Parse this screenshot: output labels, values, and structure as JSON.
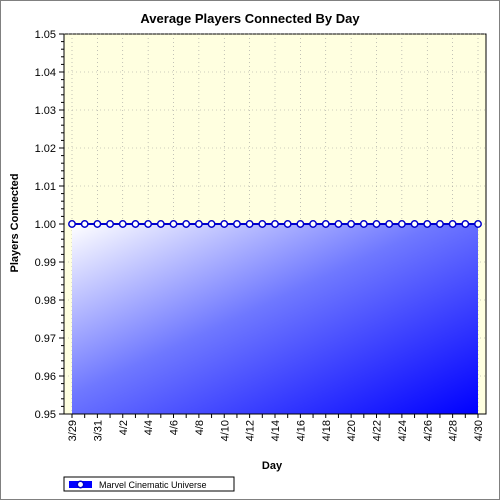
{
  "chart_data": {
    "type": "area",
    "title": "Average Players Connected By Day",
    "xlabel": "Day",
    "ylabel": "Players Connected",
    "ylim": [
      0.95,
      1.05
    ],
    "yticks": [
      "0.95",
      "0.96",
      "0.97",
      "0.98",
      "0.99",
      "1.00",
      "1.01",
      "1.02",
      "1.03",
      "1.04",
      "1.05"
    ],
    "x": [
      "3/29",
      "3/30",
      "3/31",
      "4/1",
      "4/2",
      "4/3",
      "4/4",
      "4/5",
      "4/6",
      "4/7",
      "4/8",
      "4/9",
      "4/10",
      "4/11",
      "4/12",
      "4/13",
      "4/14",
      "4/15",
      "4/16",
      "4/17",
      "4/18",
      "4/19",
      "4/20",
      "4/21",
      "4/22",
      "4/23",
      "4/24",
      "4/25",
      "4/26",
      "4/27",
      "4/28",
      "4/29",
      "4/30"
    ],
    "xticks_shown": [
      "3/29",
      "3/31",
      "4/2",
      "4/4",
      "4/6",
      "4/8",
      "4/10",
      "4/12",
      "4/14",
      "4/16",
      "4/18",
      "4/20",
      "4/22",
      "4/24",
      "4/26",
      "4/28",
      "4/30"
    ],
    "series": [
      {
        "name": "Marvel Cinematic Universe",
        "values": [
          1,
          1,
          1,
          1,
          1,
          1,
          1,
          1,
          1,
          1,
          1,
          1,
          1,
          1,
          1,
          1,
          1,
          1,
          1,
          1,
          1,
          1,
          1,
          1,
          1,
          1,
          1,
          1,
          1,
          1,
          1,
          1,
          1
        ]
      }
    ],
    "grid": true,
    "legend_position": "bottom-left",
    "colors": {
      "plot_background": "#ffffe0",
      "fill_light": "#ffffff",
      "fill_dark": "#0000ff",
      "line": "#0000cc",
      "marker_fill": "#ffffff",
      "grid": "#999999"
    }
  }
}
